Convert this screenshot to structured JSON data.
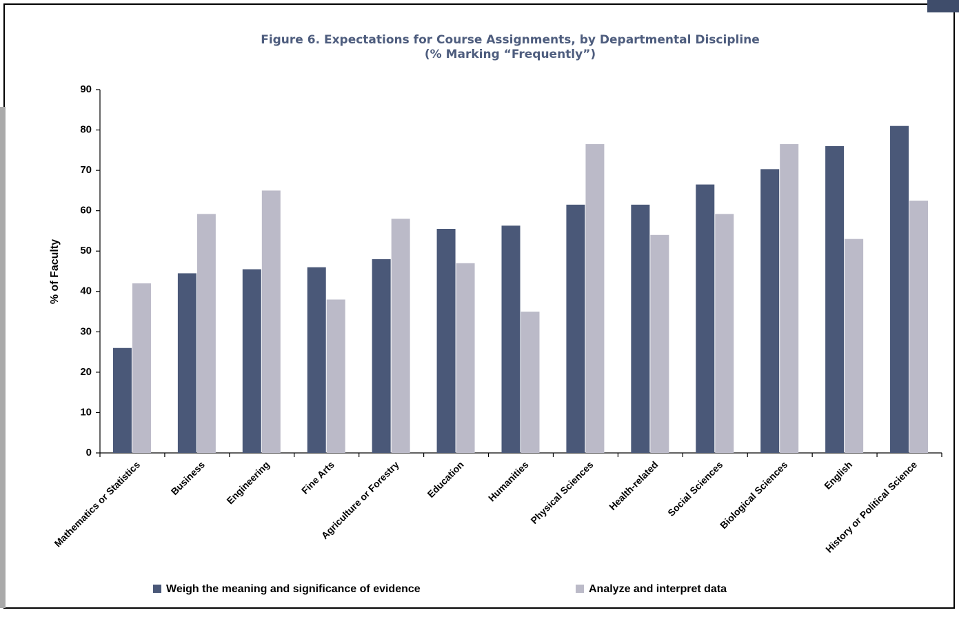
{
  "chart_data": {
    "type": "bar",
    "title": "Figure 6. Expectations for Course Assignments, by Departmental Discipline",
    "subtitle": "(% Marking “Frequently”)",
    "y_label": "% of Faculty",
    "categories": [
      "Mathematics or Statistics",
      "Business",
      "Engineering",
      "Fine Arts",
      "Agriculture or Forestry",
      "Education",
      "Humanities",
      "Physical Sciences",
      "Health-related",
      "Social Sciences",
      "Biological Sciences",
      "English",
      "History or Political Science"
    ],
    "series": [
      {
        "name": "Weigh the meaning and significance of evidence",
        "color": "#4a5878",
        "values": [
          26,
          44.5,
          45.5,
          46,
          48,
          55.5,
          56.3,
          61.5,
          61.5,
          66.5,
          70.3,
          76,
          81
        ]
      },
      {
        "name": "Analyze and interpret data",
        "color": "#bbbac8",
        "values": [
          42,
          59.2,
          65,
          38,
          58,
          47,
          35,
          76.5,
          54,
          59.2,
          76.5,
          53,
          62.5
        ]
      }
    ],
    "ylim": [
      0,
      90
    ],
    "yticks": [
      0,
      10,
      20,
      30,
      40,
      50,
      60,
      70,
      80,
      90
    ],
    "legend": "bottom"
  }
}
